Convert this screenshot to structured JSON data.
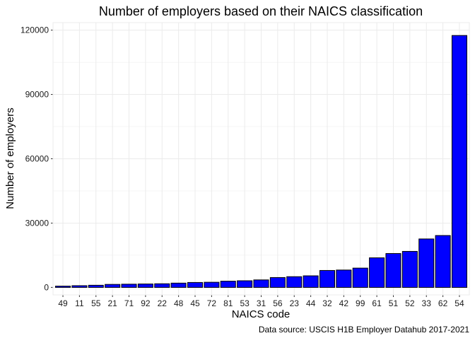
{
  "chart_data": {
    "type": "bar",
    "title": "Number of employers based on their NAICS classification",
    "xlabel": "NAICS code",
    "ylabel": "Number of employers",
    "caption": "Data source: USCIS H1B Employer Datahub 2017-2021",
    "categories": [
      "49",
      "11",
      "55",
      "21",
      "71",
      "92",
      "22",
      "48",
      "45",
      "72",
      "81",
      "53",
      "31",
      "56",
      "23",
      "44",
      "32",
      "42",
      "99",
      "61",
      "51",
      "52",
      "33",
      "62",
      "54"
    ],
    "values": [
      600,
      800,
      1000,
      1400,
      1500,
      1600,
      1700,
      2000,
      2300,
      2400,
      2900,
      3100,
      3500,
      4600,
      5000,
      5400,
      7900,
      8100,
      9000,
      13800,
      15800,
      16800,
      22600,
      24200,
      117500
    ],
    "yticks": [
      0,
      30000,
      60000,
      90000,
      120000
    ],
    "ylim": [
      -3500,
      123500
    ],
    "grid": true,
    "bar_color": "#0000ff",
    "bar_outline": "#000000",
    "panel_border": "#ebebeb",
    "grid_color": "#ebebeb"
  }
}
